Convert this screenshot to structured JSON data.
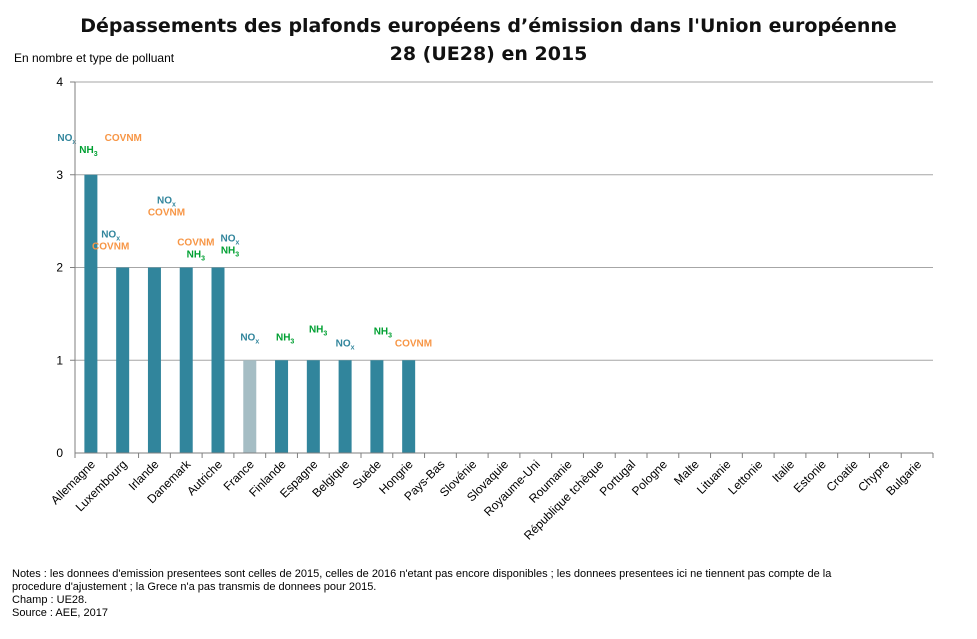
{
  "chart_data": {
    "type": "bar",
    "title_line1": "Dépassements des plafonds européens d’émission dans l'Union européenne",
    "title_line2": "28 (UE28) en 2015",
    "ylabel": "En nombre  et type de polluant",
    "ylim": [
      0,
      4
    ],
    "yticks": [
      "0",
      "1",
      "2",
      "3",
      "4"
    ],
    "grid": true,
    "categories": [
      "Allemagne",
      "Luxembourg",
      "Irlande",
      "Danemark",
      "Autriche",
      "France",
      "Finlande",
      "Espagne",
      "Belgique",
      "Suède",
      "Hongrie",
      "Pays-Bas",
      "Slovénie",
      "Slovaquie",
      "Royaume-Uni",
      "Roumanie",
      "République tchèque",
      "Portugal",
      "Pologne",
      "Malte",
      "Lituanie",
      "Lettonie",
      "Italie",
      "Estonie",
      "Croatie",
      "Chypre",
      "Bulgarie"
    ],
    "values": [
      3,
      2,
      2,
      2,
      2,
      1,
      1,
      1,
      1,
      1,
      1,
      0,
      0,
      0,
      0,
      0,
      0,
      0,
      0,
      0,
      0,
      0,
      0,
      0,
      0,
      0,
      0
    ],
    "highlight_category": "France",
    "pollutants": [
      [
        [
          "NO",
          "x"
        ],
        [
          "COVNM"
        ],
        [
          "NH",
          "3"
        ]
      ],
      [
        [
          "NO",
          "x"
        ],
        [
          "COVNM"
        ]
      ],
      [
        [
          "NO",
          "x"
        ],
        [
          "COVNM"
        ]
      ],
      [
        [
          "COVNM"
        ],
        [
          "NH",
          "3"
        ]
      ],
      [
        [
          "NO",
          "x"
        ],
        [
          "NH",
          "3"
        ]
      ],
      [
        [
          "NO",
          "x"
        ]
      ],
      [
        [
          "NH",
          "3"
        ]
      ],
      [
        [
          "NH",
          "3"
        ]
      ],
      [
        [
          "NO",
          "x"
        ]
      ],
      [
        [
          "NH",
          "3"
        ]
      ],
      [
        [
          "COVNM"
        ]
      ]
    ]
  },
  "colors": {
    "bar": "#31859c",
    "bar_highlight": "#a5bdc4",
    "nox": "#31859c",
    "covnm": "#f79646",
    "nh3": "#00a032",
    "grid": "#a6a6a6"
  },
  "notes": [
    "Notes : les donnees d'emission presentees sont celles de 2015, celles de 2016 n'etant pas encore disponibles ; les donnees presentees ici ne tiennent pas compte de la procedure d'ajustement ; la Grece n'a pas transmis de donnees pour 2015.",
    "Champ : UE28.",
    "Source : AEE, 2017"
  ]
}
